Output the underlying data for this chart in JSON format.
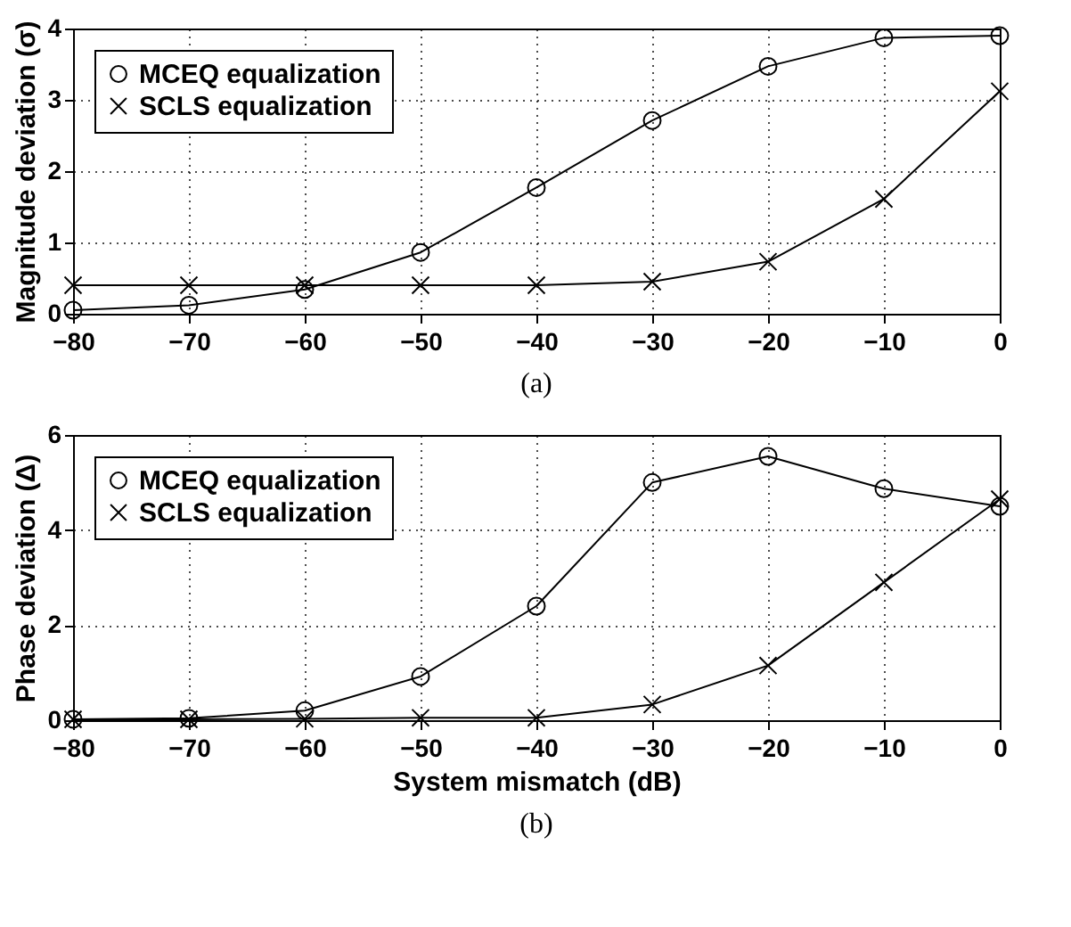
{
  "chart_data": [
    {
      "type": "line",
      "ylabel": "Magnitude deviation (σ)",
      "annotations": [
        "(a)"
      ],
      "x": [
        -80,
        -70,
        -60,
        -50,
        -40,
        -30,
        -20,
        -10,
        0
      ],
      "xlim": [
        -80,
        0
      ],
      "xticks": [
        -80,
        -70,
        -60,
        -50,
        -40,
        -30,
        -20,
        -10,
        0
      ],
      "ylim": [
        0,
        4
      ],
      "yticks": [
        0,
        1,
        2,
        3,
        4
      ],
      "grid": true,
      "legend": "top left",
      "line_style": "solid",
      "series": [
        {
          "name": "MCEQ equalization",
          "color": "#000000",
          "marker": "circle",
          "values": [
            0.05,
            0.12,
            0.34,
            0.86,
            1.77,
            2.71,
            3.47,
            3.87,
            3.9
          ]
        },
        {
          "name": "SCLS equalization",
          "color": "#000000",
          "marker": "cross",
          "values": [
            0.4,
            0.4,
            0.4,
            0.4,
            0.4,
            0.45,
            0.73,
            1.61,
            3.12
          ]
        }
      ]
    },
    {
      "type": "line",
      "xlabel": "System mismatch (dB)",
      "ylabel": "Phase deviation (Δ)",
      "annotations": [
        "(b)"
      ],
      "x": [
        -80,
        -70,
        -60,
        -50,
        -40,
        -30,
        -20,
        -10,
        0
      ],
      "xlim": [
        -80,
        0
      ],
      "xticks": [
        -80,
        -70,
        -60,
        -50,
        -40,
        -30,
        -20,
        -10,
        0
      ],
      "ylim": [
        0,
        6
      ],
      "yticks": [
        0,
        2,
        4,
        6
      ],
      "grid": true,
      "legend": "top left",
      "line_style": "solid",
      "series": [
        {
          "name": "MCEQ equalization",
          "color": "#000000",
          "marker": "circle",
          "values": [
            0.02,
            0.04,
            0.2,
            0.92,
            2.4,
            5.0,
            5.55,
            4.87,
            4.5
          ]
        },
        {
          "name": "SCLS equalization",
          "color": "#000000",
          "marker": "cross",
          "values": [
            0.02,
            0.02,
            0.03,
            0.05,
            0.05,
            0.33,
            1.15,
            2.9,
            4.65
          ]
        }
      ]
    }
  ]
}
